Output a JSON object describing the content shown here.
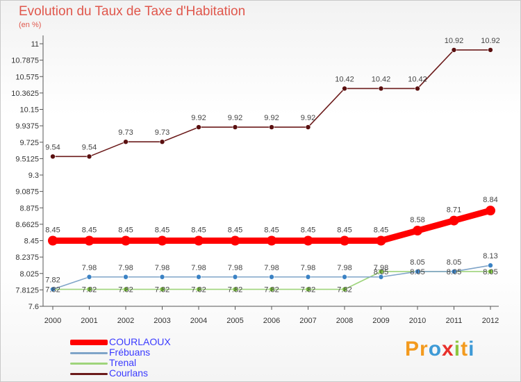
{
  "chart_data": {
    "type": "line",
    "title": "Evolution du Taux de Taxe d'Habitation",
    "subtitle": "(en %)",
    "xlabel": "",
    "ylabel": "",
    "x": [
      "2000",
      "2001",
      "2002",
      "2003",
      "2004",
      "2005",
      "2006",
      "2007",
      "2008",
      "2009",
      "2010",
      "2011",
      "2012"
    ],
    "ylim": [
      7.6,
      11
    ],
    "yticks": [
      "11",
      "10.7875",
      "10.575",
      "10.3625",
      "10.15",
      "9.9375",
      "9.725",
      "9.5125",
      "9.3",
      "9.0875",
      "8.875",
      "8.6625",
      "8.45",
      "8.2375",
      "8.025",
      "7.8125",
      "7.6"
    ],
    "grid": false,
    "legend_position": "bottom-left",
    "series": [
      {
        "name": "Courlans",
        "color": "#6b1a1a",
        "dot": "#5a1010",
        "values": [
          9.54,
          9.54,
          9.73,
          9.73,
          9.92,
          9.92,
          9.92,
          9.92,
          10.42,
          10.42,
          10.42,
          10.92,
          10.92
        ],
        "labels": [
          "9.54",
          "9.54",
          "9.73",
          "9.73",
          "9.92",
          "9.92",
          "9.92",
          "9.92",
          "10.42",
          "10.42",
          "10.42",
          "10.92",
          "10.92"
        ]
      },
      {
        "name": "Trenal",
        "color": "#9ed47b",
        "dot": "#7cc23f",
        "values": [
          7.82,
          7.82,
          7.82,
          7.82,
          7.82,
          7.82,
          7.82,
          7.82,
          7.82,
          8.05,
          8.05,
          8.05,
          8.05
        ],
        "labels": [
          "7.82",
          "7.82",
          "7.82",
          "7.82",
          "7.82",
          "7.82",
          "7.82",
          "7.82",
          "7.82",
          "8.05",
          "8.05",
          "8.05",
          "8.05"
        ]
      },
      {
        "name": "Frébuans",
        "color": "#7fa4c8",
        "dot": "#3b82c4",
        "values": [
          7.82,
          7.98,
          7.98,
          7.98,
          7.98,
          7.98,
          7.98,
          7.98,
          7.98,
          7.98,
          8.05,
          8.05,
          8.13
        ],
        "labels": [
          "7.82",
          "7.98",
          "7.98",
          "7.98",
          "7.98",
          "7.98",
          "7.98",
          "7.98",
          "7.98",
          "7.98",
          "8.05",
          "8.05",
          "8.13"
        ]
      },
      {
        "name": "COURLAOUX",
        "color": "#ff0000",
        "dot": "#ff0000",
        "values": [
          8.45,
          8.45,
          8.45,
          8.45,
          8.45,
          8.45,
          8.45,
          8.45,
          8.45,
          8.45,
          8.58,
          8.71,
          8.84
        ],
        "labels": [
          "8.45",
          "8.45",
          "8.45",
          "8.45",
          "8.45",
          "8.45",
          "8.45",
          "8.45",
          "8.45",
          "8.45",
          "8.58",
          "8.71",
          "8.84"
        ]
      }
    ]
  },
  "legend": {
    "items": [
      {
        "label": "COURLAOUX",
        "color": "#ff0000",
        "text_color": "#3a3aff"
      },
      {
        "label": "Frébuans",
        "color": "#7fa4c8",
        "text_color": "#3a3aff"
      },
      {
        "label": "Trenal",
        "color": "#9ed47b",
        "text_color": "#3a3aff"
      },
      {
        "label": "Courlans",
        "color": "#6b1a1a",
        "text_color": "#3a3aff"
      }
    ]
  },
  "brand": {
    "name": "Proxiti",
    "letters": [
      {
        "ch": "P",
        "color": "#f39a1e"
      },
      {
        "ch": "r",
        "color": "#f39a1e"
      },
      {
        "ch": "o",
        "color": "#3e9ad6"
      },
      {
        "ch": "x",
        "color": "#e8302b"
      },
      {
        "ch": "i",
        "color": "#8cc63f"
      },
      {
        "ch": "t",
        "color": "#f39a1e"
      },
      {
        "ch": "i",
        "color": "#3e9ad6"
      }
    ]
  }
}
